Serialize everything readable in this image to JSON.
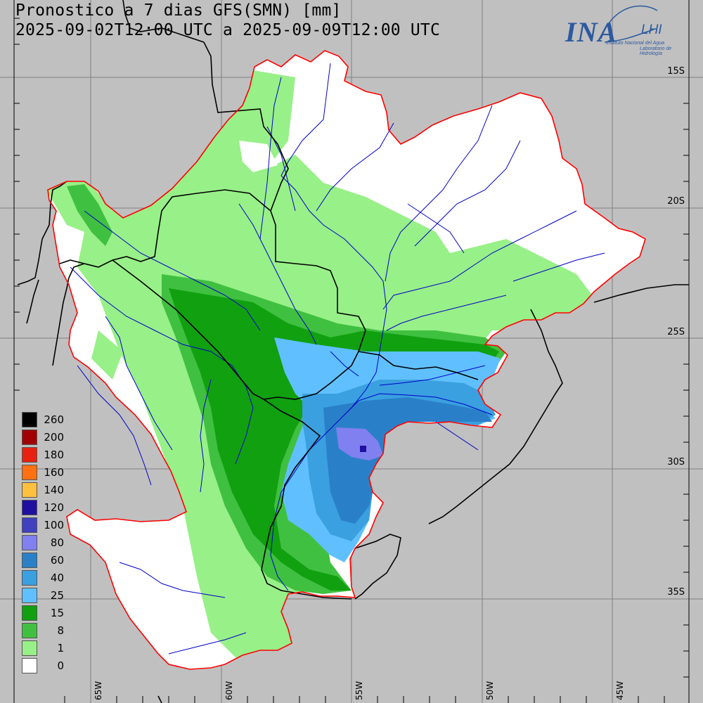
{
  "title": {
    "line1": "Pronostico a 7 dias GFS(SMN) [mm]",
    "line2": "2025-09-02T12:00 UTC a 2025-09-09T12:00 UTC"
  },
  "logo": {
    "main": "INA",
    "secondary": "LHI",
    "subtitle1": "Instituto Nacional del Agua",
    "subtitle2": "Laboratorio de Hidrología"
  },
  "lat_labels": [
    "15S",
    "20S",
    "25S",
    "30S",
    "35S"
  ],
  "lon_labels": [
    "65W",
    "60W",
    "55W",
    "50W",
    "45W"
  ],
  "legend": {
    "items": [
      {
        "label": "260",
        "color": "#000000"
      },
      {
        "label": "200",
        "color": "#a00000"
      },
      {
        "label": "180",
        "color": "#e82010"
      },
      {
        "label": "160",
        "color": "#ff7010"
      },
      {
        "label": "140",
        "color": "#ffc040"
      },
      {
        "label": "120",
        "color": "#2010a0"
      },
      {
        "label": "100",
        "color": "#4040c0"
      },
      {
        "label": "80",
        "color": "#8080f0"
      },
      {
        "label": "60",
        "color": "#2a80c8"
      },
      {
        "label": "40",
        "color": "#3aa0e0"
      },
      {
        "label": "25",
        "color": "#60c0ff"
      },
      {
        "label": "15",
        "color": "#10a010"
      },
      {
        "label": "8",
        "color": "#40c040"
      },
      {
        "label": "1",
        "color": "#98f088"
      },
      {
        "label": "0",
        "color": "#ffffff"
      }
    ]
  },
  "colors": {
    "background": "#c0c0c0",
    "basin_border": "#ff0000",
    "country_border": "#000000",
    "rivers": "#0000c8",
    "grid": "#808080"
  }
}
